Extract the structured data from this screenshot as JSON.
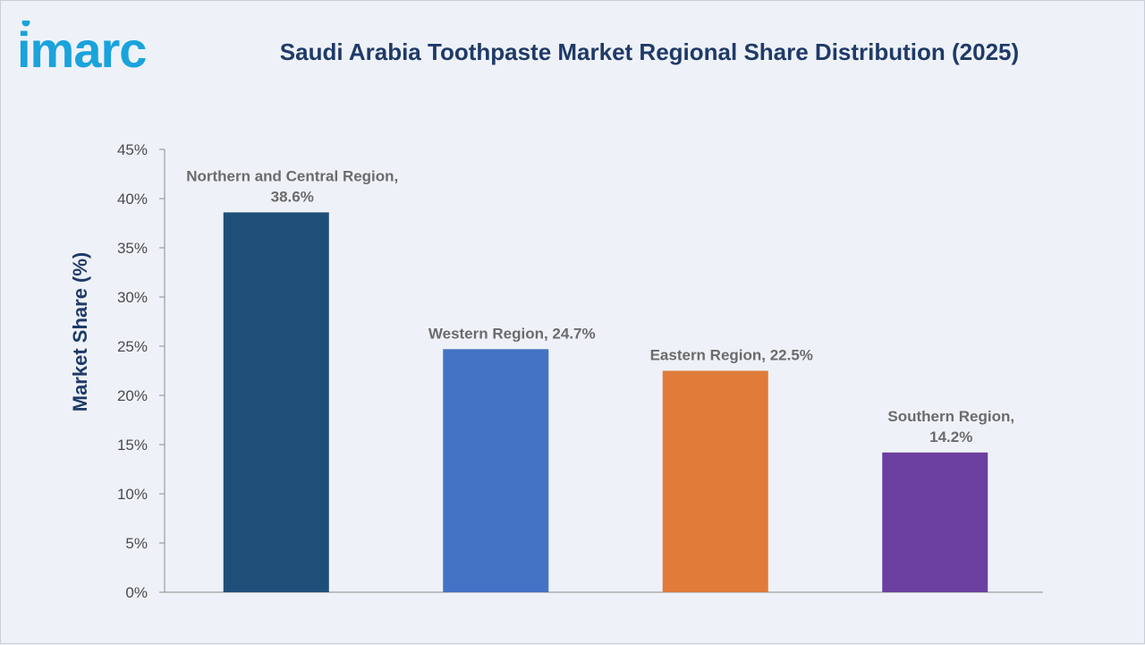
{
  "brand": {
    "logo_text": "imarc",
    "logo_color": "#1aa3dc"
  },
  "header": {
    "title": "Saudi Arabia Toothpaste Market Regional Share Distribution (2025)"
  },
  "chart_data": {
    "type": "bar",
    "title": "Saudi Arabia Toothpaste Market Regional Share Distribution (2025)",
    "xlabel": "",
    "ylabel": "Market Share (%)",
    "ylim": [
      0,
      45
    ],
    "y_ticks": [
      "0%",
      "5%",
      "10%",
      "15%",
      "20%",
      "25%",
      "30%",
      "35%",
      "40%",
      "45%"
    ],
    "grid": false,
    "legend": "none",
    "categories": [
      "Northern and Central Region",
      "Western Region",
      "Eastern Region",
      "Southern Region"
    ],
    "values": [
      38.6,
      24.7,
      22.5,
      14.2
    ],
    "colors": [
      "#1f4e79",
      "#4472c4",
      "#e07b39",
      "#6b3fa0"
    ],
    "data_labels": [
      [
        "Northern and Central Region,",
        "38.6%"
      ],
      [
        "Western Region, 24.7%"
      ],
      [
        "Eastern Region, 22.5%"
      ],
      [
        "Southern Region,",
        "14.2%"
      ]
    ]
  }
}
